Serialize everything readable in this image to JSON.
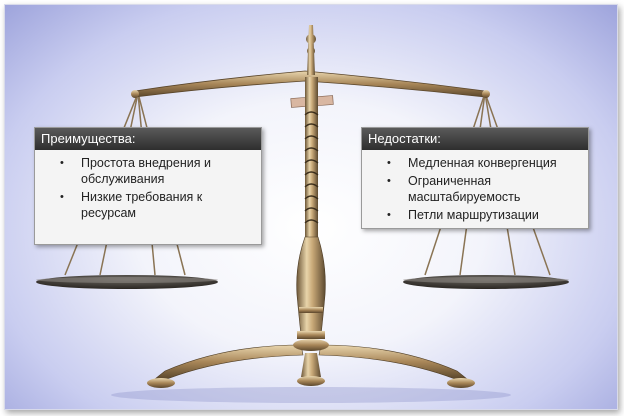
{
  "left_panel": {
    "title": "Преимущества:",
    "items": [
      "Простота внедрения и обслуживания",
      "Низкие требования к ресурсам"
    ]
  },
  "right_panel": {
    "title": "Недостатки:",
    "items": [
      "Медленная конвергенция",
      "Ограниченная масштабируемость",
      "Петли маршрутизации"
    ]
  },
  "scale_image": {
    "icon": "balance-scale-icon",
    "metal_color": "#b89a6a",
    "background_color": "#a9aee0"
  }
}
